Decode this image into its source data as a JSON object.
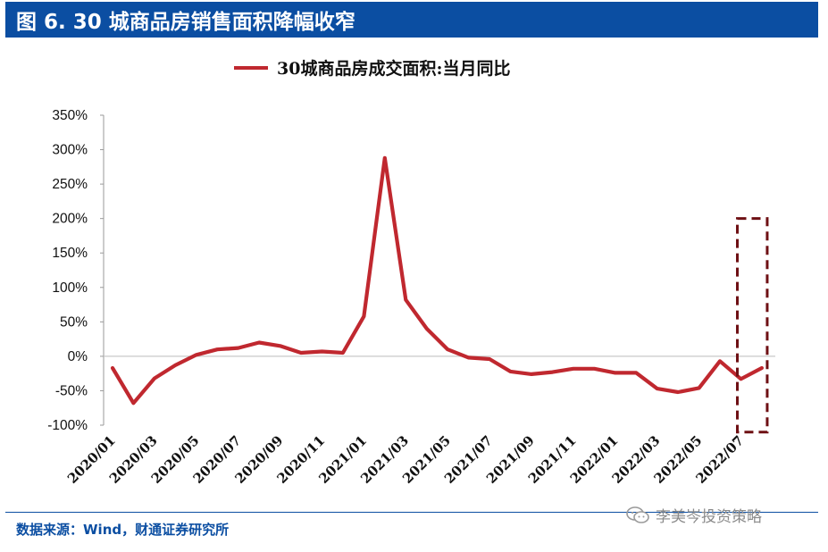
{
  "header": {
    "title": "图 6. 30 城商品房销售面积降幅收窄"
  },
  "footer": {
    "source": "数据来源：Wind，财通证券研究所"
  },
  "watermark": {
    "text": "李美岑投资策略",
    "icon": "wechat-icon"
  },
  "colors": {
    "header_bg": "#0b4ea2",
    "series": "#c0282f",
    "highlight_box": "#6e1014",
    "zero_line": "#c8c8c8"
  },
  "chart_data": {
    "type": "line",
    "legend": "30城商品房成交面积:当月同比",
    "legend_position": "top",
    "grid": false,
    "ylim": [
      -100,
      350
    ],
    "yticks": [
      -100,
      -50,
      0,
      50,
      100,
      150,
      200,
      250,
      300,
      350
    ],
    "ytick_labels": [
      "-100%",
      "-50%",
      "0%",
      "50%",
      "100%",
      "150%",
      "200%",
      "250%",
      "300%",
      "350%"
    ],
    "xtick_labels": [
      "2020/01",
      "2020/03",
      "2020/05",
      "2020/07",
      "2020/09",
      "2020/11",
      "2021/01",
      "2021/03",
      "2021/05",
      "2021/07",
      "2021/09",
      "2021/11",
      "2022/01",
      "2022/03",
      "2022/05",
      "2022/07"
    ],
    "x": [
      "2020/01",
      "2020/02",
      "2020/03",
      "2020/04",
      "2020/05",
      "2020/06",
      "2020/07",
      "2020/08",
      "2020/09",
      "2020/10",
      "2020/11",
      "2020/12",
      "2021/01",
      "2021/02",
      "2021/03",
      "2021/04",
      "2021/05",
      "2021/06",
      "2021/07",
      "2021/08",
      "2021/09",
      "2021/10",
      "2021/11",
      "2021/12",
      "2022/01",
      "2022/02",
      "2022/03",
      "2022/04",
      "2022/05",
      "2022/06",
      "2022/07",
      "2022/08"
    ],
    "series": [
      {
        "name": "30城商品房成交面积:当月同比",
        "values": [
          -17,
          -68,
          -32,
          -13,
          2,
          10,
          12,
          20,
          15,
          5,
          7,
          5,
          58,
          288,
          82,
          40,
          10,
          -2,
          -4,
          -22,
          -26,
          -23,
          -18,
          -18,
          -24,
          -24,
          -47,
          -52,
          -46,
          -7,
          -33,
          -17
        ]
      }
    ],
    "annotations": [
      {
        "type": "dashed-box",
        "x_start": "2022/07",
        "x_end": "2022/08",
        "y_range": [
          -110,
          200
        ]
      }
    ]
  }
}
